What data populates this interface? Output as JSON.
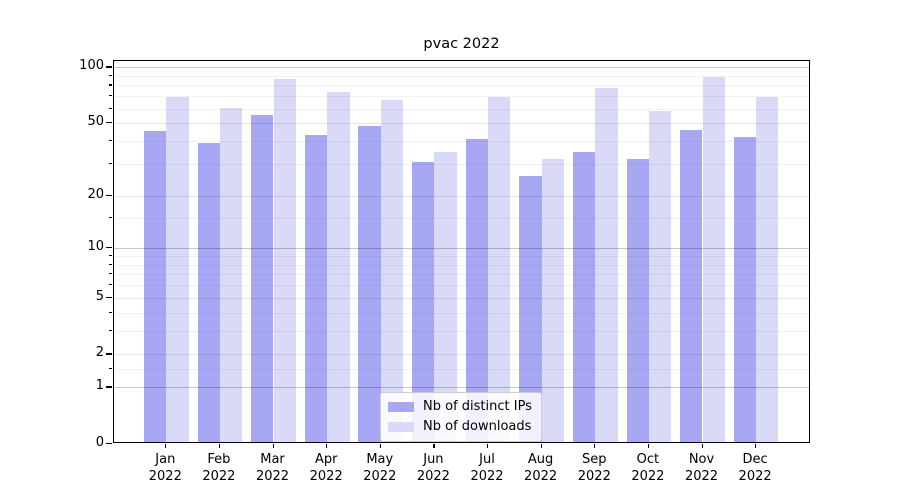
{
  "chart_data": {
    "type": "bar",
    "title": "pvac 2022",
    "yscale": "symlog",
    "ylim": [
      0,
      111
    ],
    "yticks": [
      0,
      1,
      2,
      5,
      10,
      20,
      50,
      100
    ],
    "grid": "both",
    "legend_position": "lower center",
    "categories": [
      "Jan 2022",
      "Feb 2022",
      "Mar 2022",
      "Apr 2022",
      "May 2022",
      "Jun 2022",
      "Jul 2022",
      "Aug 2022",
      "Sep 2022",
      "Oct 2022",
      "Nov 2022",
      "Dec 2022"
    ],
    "series": [
      {
        "name": "Nb of distinct IPs",
        "color": "#a7a7f4",
        "values": [
          44,
          38,
          54,
          42,
          47,
          30,
          40,
          25,
          34,
          31,
          45,
          41
        ]
      },
      {
        "name": "Nb of downloads",
        "color": "#d9d9f8",
        "values": [
          68,
          59,
          85,
          72,
          65,
          34,
          68,
          31,
          76,
          57,
          87,
          68
        ]
      }
    ]
  }
}
